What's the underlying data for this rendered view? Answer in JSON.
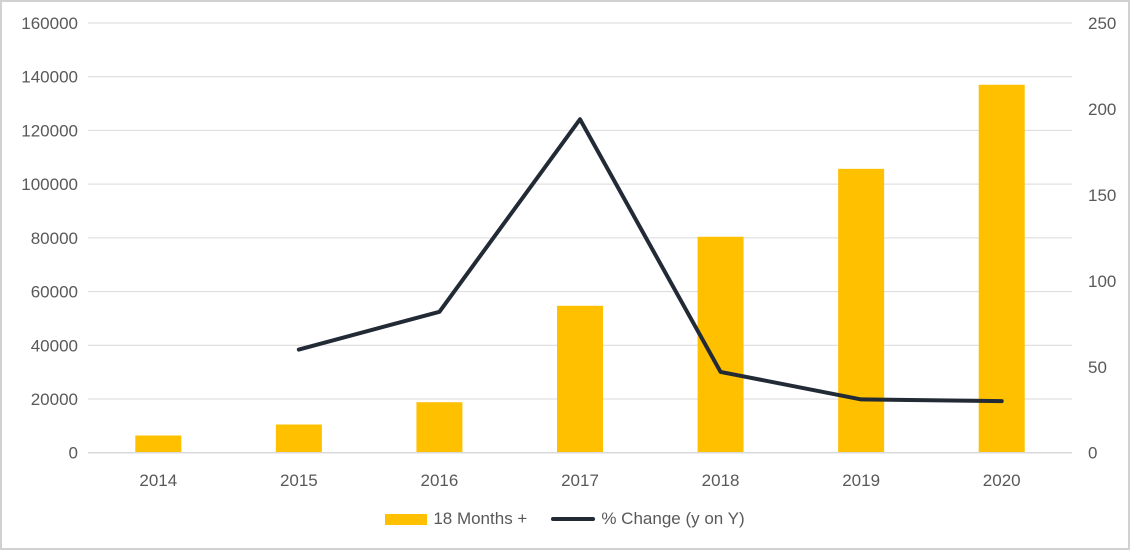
{
  "chart_data": {
    "type": "combo-bar-line",
    "title": "",
    "categories": [
      "2014",
      "2015",
      "2016",
      "2017",
      "2018",
      "2019",
      "2020"
    ],
    "series": [
      {
        "name": "18 Months +",
        "type": "bar",
        "axis": "left",
        "color": "#FFC000",
        "values": [
          6400,
          10500,
          18800,
          54700,
          80400,
          105700,
          137000
        ]
      },
      {
        "name": "% Change (y on Y)",
        "type": "line",
        "axis": "right",
        "color": "#222B35",
        "values": [
          null,
          60,
          82,
          194,
          47,
          31,
          30
        ]
      }
    ],
    "left_axis": {
      "min": 0,
      "max": 160000,
      "tick_values": [
        0,
        20000,
        40000,
        60000,
        80000,
        100000,
        120000,
        140000,
        160000
      ],
      "tick_labels": [
        "0",
        "20000",
        "40000",
        "60000",
        "80000",
        "100000",
        "120000",
        "140000",
        "160000"
      ]
    },
    "right_axis": {
      "min": 0,
      "max": 250,
      "tick_values": [
        0,
        50,
        100,
        150,
        200,
        250
      ],
      "tick_labels": [
        "0",
        "50",
        "100",
        "150",
        "200",
        "250"
      ]
    },
    "grid": true,
    "gridlines_follow": "left",
    "legend_position": "bottom"
  },
  "colors": {
    "background": "#FFFFFF",
    "frame_border": "#D1D1D1",
    "gridline": "#D9D9D9",
    "axis_line": "#D9D9D9",
    "tick_text": "#595959"
  }
}
